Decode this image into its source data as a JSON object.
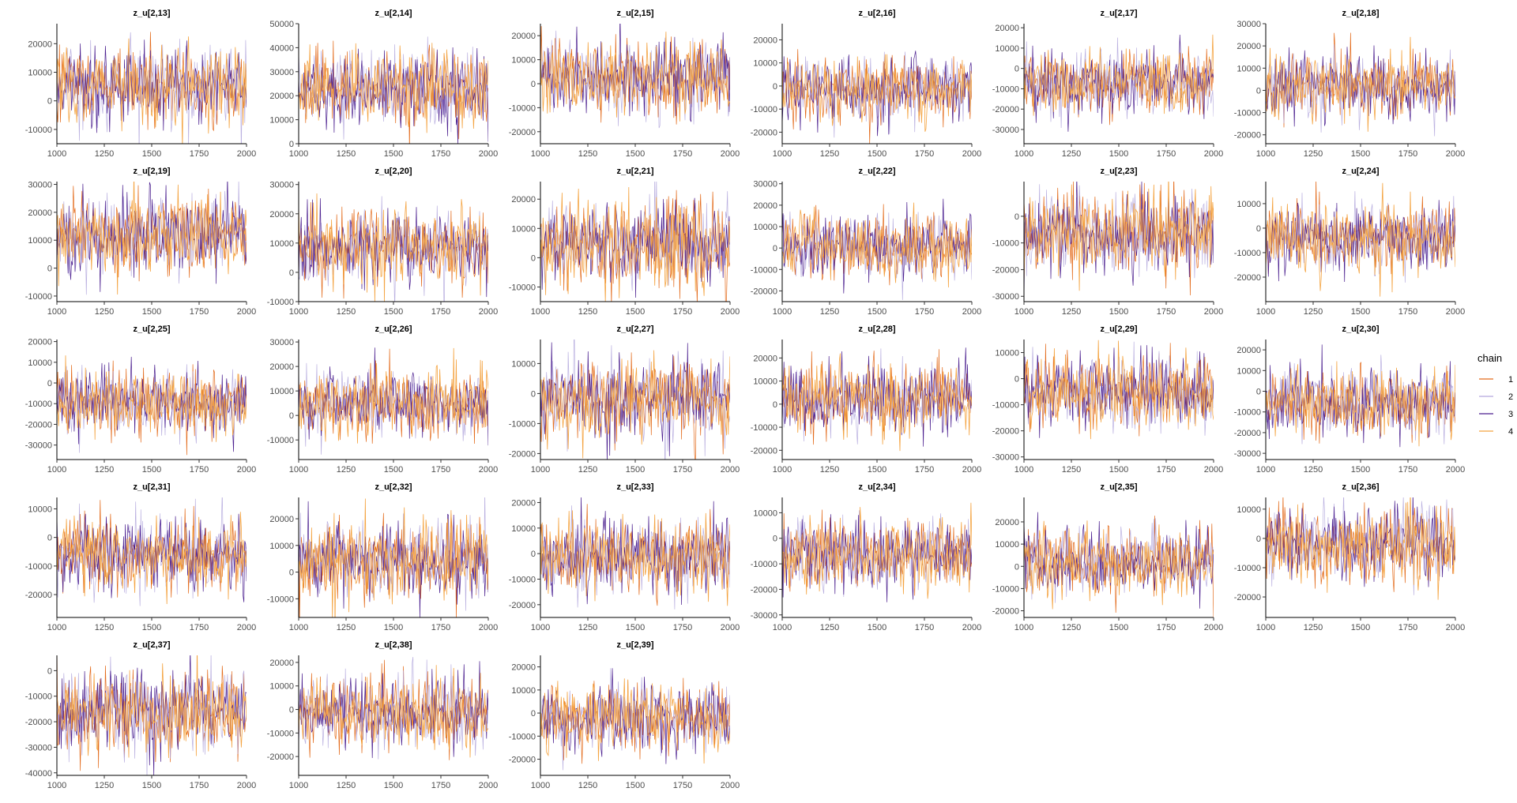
{
  "chart_data": {
    "type": "line",
    "figure_kind": "MCMC trace plots (faceted)",
    "legend": {
      "title": "chain",
      "placement": "right",
      "entries": [
        {
          "label": "1",
          "color": "#e36a1a"
        },
        {
          "label": "2",
          "color": "#b3a7dd"
        },
        {
          "label": "3",
          "color": "#4b1f8f"
        },
        {
          "label": "4",
          "color": "#f4a442"
        }
      ]
    },
    "series_colors": {
      "chain1": "#e36a1a",
      "chain2": "#b3a7dd",
      "chain3": "#4b1f8f",
      "chain4": "#f4a442"
    },
    "x_axis": {
      "range": [
        1000,
        2000
      ],
      "ticks": [
        1000,
        1250,
        1500,
        1750,
        2000
      ],
      "tick_labels": [
        "1000",
        "1250",
        "1500",
        "1750",
        "2000"
      ]
    },
    "panels": [
      {
        "title": "z_u[2,13]",
        "ylim": [
          -15000,
          27000
        ],
        "yticks": [
          -10000,
          0,
          10000,
          20000
        ],
        "ytick_labels": [
          "-10000",
          "0",
          "10000",
          "20000"
        ],
        "center": 5000,
        "spread": 7000
      },
      {
        "title": "z_u[2,14]",
        "ylim": [
          0,
          50000
        ],
        "yticks": [
          0,
          10000,
          20000,
          30000,
          40000,
          50000
        ],
        "ytick_labels": [
          "0",
          "10000",
          "20000",
          "30000",
          "40000",
          "50000"
        ],
        "center": 23000,
        "spread": 8000
      },
      {
        "title": "z_u[2,15]",
        "ylim": [
          -25000,
          25000
        ],
        "yticks": [
          -20000,
          -10000,
          0,
          10000,
          20000
        ],
        "ytick_labels": [
          "-20000",
          "-10000",
          "0",
          "10000",
          "20000"
        ],
        "center": 3000,
        "spread": 7500
      },
      {
        "title": "z_u[2,16]",
        "ylim": [
          -25000,
          27000
        ],
        "yticks": [
          -20000,
          -10000,
          0,
          10000,
          20000
        ],
        "ytick_labels": [
          "-20000",
          "-10000",
          "0",
          "10000",
          "20000"
        ],
        "center": -1000,
        "spread": 7000
      },
      {
        "title": "z_u[2,17]",
        "ylim": [
          -37000,
          22000
        ],
        "yticks": [
          -30000,
          -20000,
          -10000,
          0,
          10000,
          20000
        ],
        "ytick_labels": [
          "-30000",
          "-20000",
          "-10000",
          "0",
          "10000",
          "20000"
        ],
        "center": -7000,
        "spread": 8000
      },
      {
        "title": "z_u[2,18]",
        "ylim": [
          -24000,
          30000
        ],
        "yticks": [
          -20000,
          -10000,
          0,
          10000,
          20000,
          30000
        ],
        "ytick_labels": [
          "-20000",
          "-10000",
          "0",
          "10000",
          "20000",
          "30000"
        ],
        "center": 2000,
        "spread": 7500
      },
      {
        "title": "z_u[2,19]",
        "ylim": [
          -12000,
          31000
        ],
        "yticks": [
          -10000,
          0,
          10000,
          20000,
          30000
        ],
        "ytick_labels": [
          "-10000",
          "0",
          "10000",
          "20000",
          "30000"
        ],
        "center": 12000,
        "spread": 7000
      },
      {
        "title": "z_u[2,20]",
        "ylim": [
          -10000,
          31000
        ],
        "yticks": [
          -10000,
          0,
          10000,
          20000,
          30000
        ],
        "ytick_labels": [
          "-10000",
          "0",
          "10000",
          "20000",
          "30000"
        ],
        "center": 9000,
        "spread": 6500
      },
      {
        "title": "z_u[2,21]",
        "ylim": [
          -15000,
          26000
        ],
        "yticks": [
          -10000,
          0,
          10000,
          20000
        ],
        "ytick_labels": [
          "-10000",
          "0",
          "10000",
          "20000"
        ],
        "center": 4000,
        "spread": 7000
      },
      {
        "title": "z_u[2,22]",
        "ylim": [
          -25000,
          31000
        ],
        "yticks": [
          -20000,
          -10000,
          0,
          10000,
          20000,
          30000
        ],
        "ytick_labels": [
          "-20000",
          "-10000",
          "0",
          "10000",
          "20000",
          "30000"
        ],
        "center": 1000,
        "spread": 7500
      },
      {
        "title": "z_u[2,23]",
        "ylim": [
          -32000,
          13000
        ],
        "yticks": [
          -30000,
          -20000,
          -10000,
          0
        ],
        "ytick_labels": [
          "-30000",
          "-20000",
          "-10000",
          "0"
        ],
        "center": -6000,
        "spread": 7500
      },
      {
        "title": "z_u[2,24]",
        "ylim": [
          -30000,
          19000
        ],
        "yticks": [
          -20000,
          -10000,
          0,
          10000
        ],
        "ytick_labels": [
          "-20000",
          "-10000",
          "0",
          "10000"
        ],
        "center": -4000,
        "spread": 7000
      },
      {
        "title": "z_u[2,25]",
        "ylim": [
          -37000,
          21000
        ],
        "yticks": [
          -30000,
          -20000,
          -10000,
          0,
          10000,
          20000
        ],
        "ytick_labels": [
          "-30000",
          "-20000",
          "-10000",
          "0",
          "10000",
          "20000"
        ],
        "center": -9000,
        "spread": 8000
      },
      {
        "title": "z_u[2,26]",
        "ylim": [
          -18000,
          31000
        ],
        "yticks": [
          -10000,
          0,
          10000,
          20000,
          30000
        ],
        "ytick_labels": [
          "-10000",
          "0",
          "10000",
          "20000",
          "30000"
        ],
        "center": 5000,
        "spread": 7000
      },
      {
        "title": "z_u[2,27]",
        "ylim": [
          -22000,
          18000
        ],
        "yticks": [
          -20000,
          -10000,
          0,
          10000
        ],
        "ytick_labels": [
          "-20000",
          "-10000",
          "0",
          "10000"
        ],
        "center": -2000,
        "spread": 6500
      },
      {
        "title": "z_u[2,28]",
        "ylim": [
          -24000,
          28000
        ],
        "yticks": [
          -20000,
          -10000,
          0,
          10000,
          20000
        ],
        "ytick_labels": [
          "-20000",
          "-10000",
          "0",
          "10000",
          "20000"
        ],
        "center": 2000,
        "spread": 7500
      },
      {
        "title": "z_u[2,29]",
        "ylim": [
          -31000,
          15000
        ],
        "yticks": [
          -30000,
          -20000,
          -10000,
          0,
          10000
        ],
        "ytick_labels": [
          "-30000",
          "-20000",
          "-10000",
          "0",
          "10000"
        ],
        "center": -5000,
        "spread": 7000
      },
      {
        "title": "z_u[2,30]",
        "ylim": [
          -33000,
          25000
        ],
        "yticks": [
          -30000,
          -20000,
          -10000,
          0,
          10000,
          20000
        ],
        "ytick_labels": [
          "-30000",
          "-20000",
          "-10000",
          "0",
          "10000",
          "20000"
        ],
        "center": -5000,
        "spread": 8000
      },
      {
        "title": "z_u[2,31]",
        "ylim": [
          -28000,
          14000
        ],
        "yticks": [
          -20000,
          -10000,
          0,
          10000
        ],
        "ytick_labels": [
          "-20000",
          "-10000",
          "0",
          "10000"
        ],
        "center": -6000,
        "spread": 6500
      },
      {
        "title": "z_u[2,32]",
        "ylim": [
          -17000,
          28000
        ],
        "yticks": [
          -10000,
          0,
          10000,
          20000
        ],
        "ytick_labels": [
          "-10000",
          "0",
          "10000",
          "20000"
        ],
        "center": 5000,
        "spread": 7000
      },
      {
        "title": "z_u[2,33]",
        "ylim": [
          -25000,
          22000
        ],
        "yticks": [
          -20000,
          -10000,
          0,
          10000,
          20000
        ],
        "ytick_labels": [
          "-20000",
          "-10000",
          "0",
          "10000",
          "20000"
        ],
        "center": -1000,
        "spread": 7000
      },
      {
        "title": "z_u[2,34]",
        "ylim": [
          -31000,
          16000
        ],
        "yticks": [
          -30000,
          -20000,
          -10000,
          0,
          10000
        ],
        "ytick_labels": [
          "-30000",
          "-20000",
          "-10000",
          "0",
          "10000"
        ],
        "center": -6000,
        "spread": 7000
      },
      {
        "title": "z_u[2,35]",
        "ylim": [
          -23000,
          31000
        ],
        "yticks": [
          -20000,
          -10000,
          0,
          10000,
          20000
        ],
        "ytick_labels": [
          "-20000",
          "-10000",
          "0",
          "10000",
          "20000"
        ],
        "center": 2000,
        "spread": 7500
      },
      {
        "title": "z_u[2,36]",
        "ylim": [
          -27000,
          14000
        ],
        "yticks": [
          -20000,
          -10000,
          0,
          10000
        ],
        "ytick_labels": [
          "-20000",
          "-10000",
          "0",
          "10000"
        ],
        "center": -2000,
        "spread": 6500
      },
      {
        "title": "z_u[2,37]",
        "ylim": [
          -41000,
          6000
        ],
        "yticks": [
          -40000,
          -30000,
          -20000,
          -10000,
          0
        ],
        "ytick_labels": [
          "-40000",
          "-30000",
          "-20000",
          "-10000",
          "0"
        ],
        "center": -16000,
        "spread": 8000
      },
      {
        "title": "z_u[2,38]",
        "ylim": [
          -28000,
          23000
        ],
        "yticks": [
          -20000,
          -10000,
          0,
          10000,
          20000
        ],
        "ytick_labels": [
          "-20000",
          "-10000",
          "0",
          "10000",
          "20000"
        ],
        "center": -1000,
        "spread": 7500
      },
      {
        "title": "z_u[2,39]",
        "ylim": [
          -27000,
          25000
        ],
        "yticks": [
          -20000,
          -10000,
          0,
          10000,
          20000
        ],
        "ytick_labels": [
          "-20000",
          "-10000",
          "0",
          "10000",
          "20000"
        ],
        "center": -2000,
        "spread": 7500
      }
    ]
  }
}
